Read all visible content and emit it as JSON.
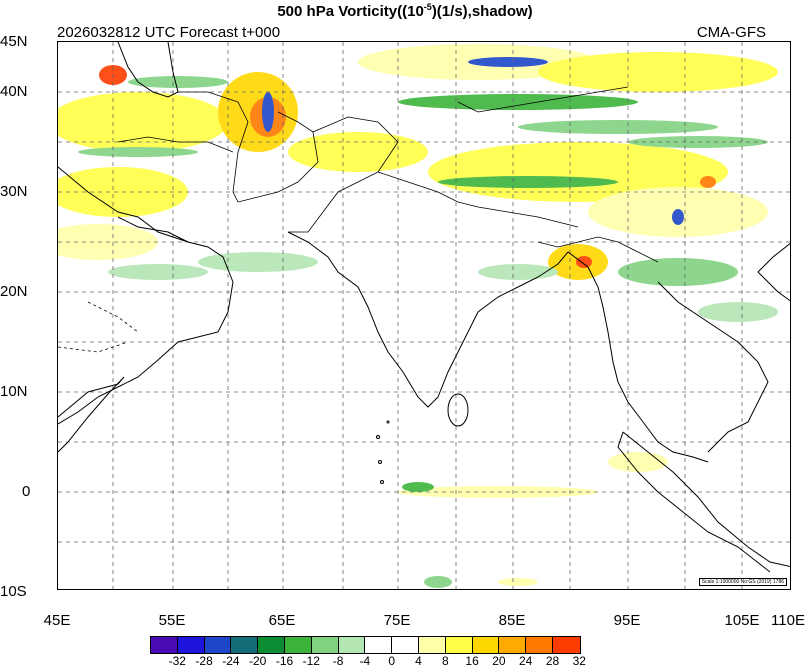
{
  "title_main": "500 hPa Vorticity((10",
  "title_exp": "-5",
  "title_tail": ")(1/s),shadow)",
  "subtitle": "2026032812 UTC Forecast t+000",
  "model": "CMA-GFS",
  "scale_note": "Scale 1:1000000 No:GS (2019) 1786",
  "lat_labels": [
    "45N",
    "40N",
    "30N",
    "20N",
    "10N",
    "0",
    "10S"
  ],
  "lon_labels": [
    "45E",
    "55E",
    "65E",
    "75E",
    "85E",
    "95E",
    "105E",
    "110E"
  ],
  "colorbar": {
    "ticks": [
      "-32",
      "-28",
      "-24",
      "-20",
      "-16",
      "-12",
      "-8",
      "-4",
      "0",
      "4",
      "8",
      "16",
      "20",
      "24",
      "28",
      "32"
    ],
    "colors": [
      "#4b0ab4",
      "#1e14dc",
      "#1e46c8",
      "#146e78",
      "#0a8c32",
      "#3cb43c",
      "#82d282",
      "#b4e6b4",
      "#ffffff",
      "#ffffff",
      "#ffffaa",
      "#ffff46",
      "#ffd700",
      "#ffaa00",
      "#ff7800",
      "#ff3c00"
    ]
  },
  "map_regions": {
    "features": [
      "coastline",
      "country-borders",
      "graticule",
      "vorticity-shading"
    ]
  }
}
